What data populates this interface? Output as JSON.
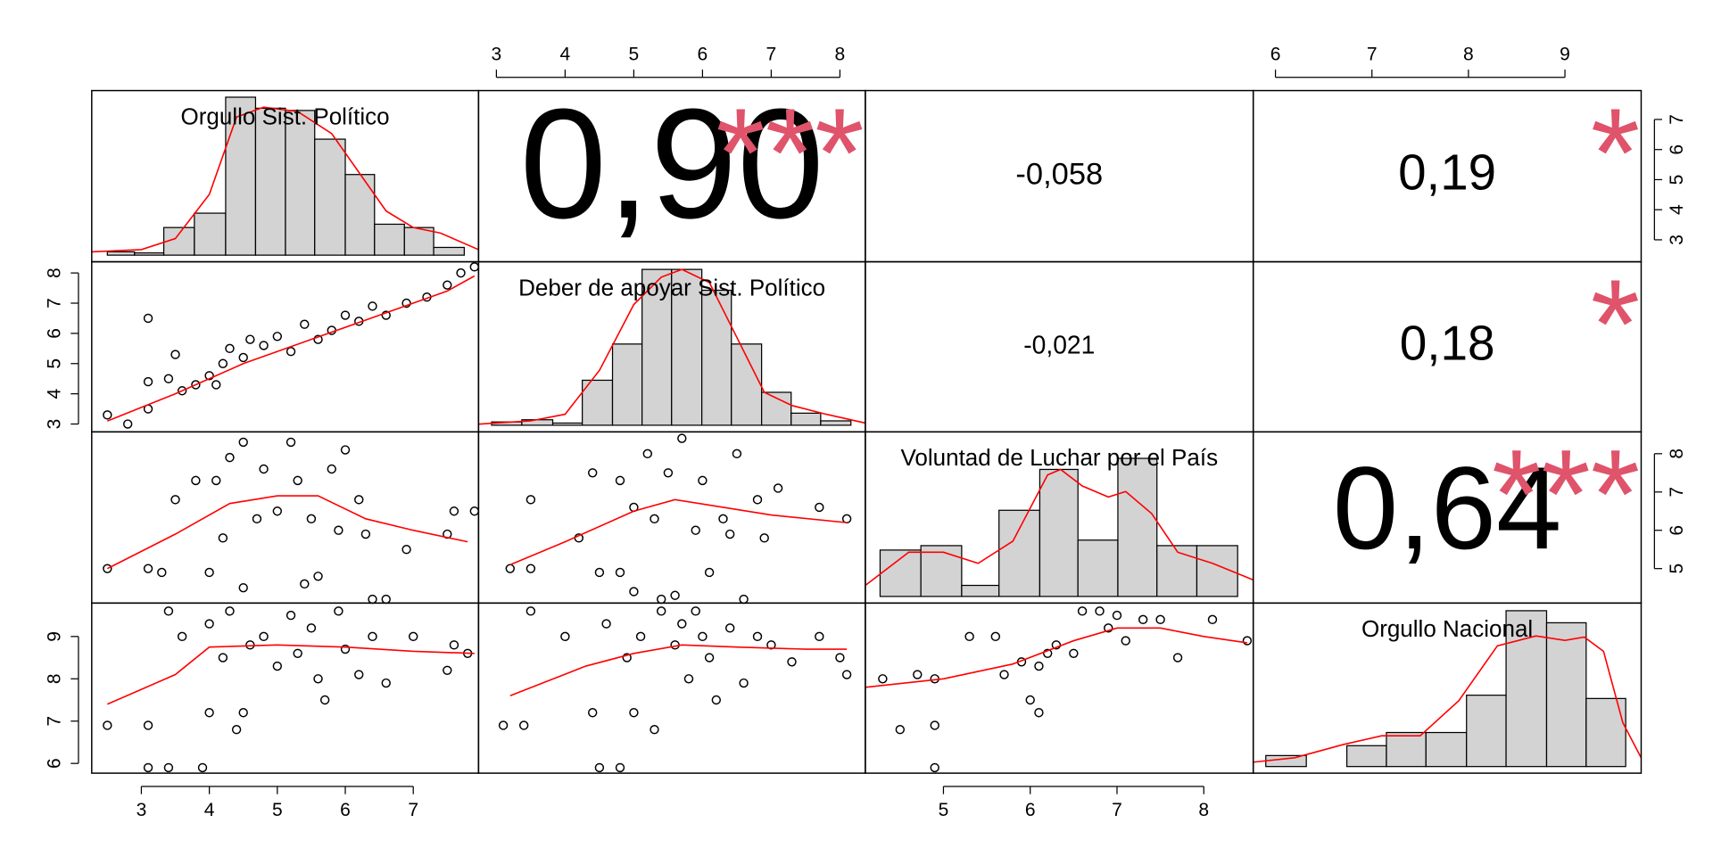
{
  "chart_data": {
    "type": "pairs",
    "point_color": "#000000",
    "fit_color": "#ff0000",
    "hist_color": "#d3d3d3",
    "star_color": "#df536b",
    "variables": [
      {
        "name": "Orgullo Sist. Político",
        "lim": [
          2.27,
          7.96
        ],
        "ticks": [
          3,
          4,
          5,
          6,
          7
        ],
        "hist": {
          "bins": [
            2.5,
            2.9,
            3.33,
            3.78,
            4.24,
            4.68,
            5.12,
            5.55,
            6.0,
            6.43,
            6.87,
            7.3,
            7.75
          ],
          "counts": [
            3,
            2,
            25,
            38,
            143,
            133,
            131,
            105,
            73,
            28,
            25,
            7
          ]
        },
        "density": {
          "x": [
            2.27,
            3.0,
            3.5,
            4.0,
            4.4,
            4.8,
            5.3,
            5.8,
            6.2,
            6.6,
            7.0,
            7.4,
            7.96
          ],
          "y": [
            3,
            5,
            15,
            55,
            125,
            134,
            130,
            110,
            75,
            40,
            25,
            20,
            5
          ]
        }
      },
      {
        "name": "Deber de apoyar Sist. Político",
        "lim": [
          2.74,
          8.37
        ],
        "ticks": [
          3,
          4,
          5,
          6,
          7,
          8
        ],
        "hist": {
          "bins": [
            2.93,
            3.37,
            3.82,
            4.25,
            4.69,
            5.12,
            5.55,
            5.99,
            6.42,
            6.86,
            7.29,
            7.72,
            8.16
          ],
          "counts": [
            3,
            5,
            2,
            41,
            74,
            142,
            142,
            123,
            74,
            30,
            11,
            4
          ]
        },
        "density": {
          "x": [
            2.74,
            3.5,
            4.0,
            4.5,
            5.0,
            5.4,
            5.7,
            6.1,
            6.5,
            6.9,
            7.3,
            7.8,
            8.37
          ],
          "y": [
            1,
            4,
            10,
            50,
            110,
            135,
            142,
            130,
            80,
            30,
            18,
            10,
            2
          ]
        }
      },
      {
        "name": "Voluntad de Luchar por el País",
        "lim": [
          4.1,
          8.57
        ],
        "ticks": [
          5,
          6,
          7,
          8
        ],
        "hist": {
          "bins": [
            4.27,
            4.74,
            5.21,
            5.64,
            6.11,
            6.55,
            7.01,
            7.46,
            7.92,
            8.39
          ],
          "counts": [
            42,
            46,
            10,
            78,
            115,
            51,
            125,
            46,
            46
          ]
        },
        "density": {
          "x": [
            4.1,
            4.6,
            5.0,
            5.4,
            5.8,
            6.2,
            6.35,
            6.6,
            6.9,
            7.1,
            7.4,
            7.7,
            8.1,
            8.57
          ],
          "y": [
            10,
            40,
            40,
            30,
            50,
            110,
            115,
            100,
            90,
            95,
            75,
            40,
            30,
            15
          ]
        }
      },
      {
        "name": "Orgullo Nacional",
        "lim": [
          5.77,
          9.79
        ],
        "ticks": [
          6,
          7,
          8,
          9
        ],
        "hist": {
          "bins": [
            5.9,
            6.32,
            6.74,
            7.15,
            7.56,
            7.98,
            8.39,
            8.81,
            9.22,
            9.63
          ],
          "counts": [
            10,
            0,
            19,
            31,
            31,
            65,
            142,
            131,
            62
          ]
        },
        "density": {
          "x": [
            5.77,
            6.2,
            6.7,
            7.1,
            7.5,
            7.9,
            8.3,
            8.7,
            9.0,
            9.2,
            9.4,
            9.6,
            9.79
          ],
          "y": [
            4,
            8,
            20,
            28,
            28,
            60,
            110,
            119,
            115,
            118,
            105,
            40,
            8
          ]
        }
      }
    ],
    "correlations": [
      {
        "pair": [
          0,
          1
        ],
        "value": 0.9,
        "label": "0,90",
        "stars": "***"
      },
      {
        "pair": [
          0,
          2
        ],
        "value": -0.058,
        "label": "-0,058"
      },
      {
        "pair": [
          0,
          3
        ],
        "value": 0.19,
        "label": "0,19",
        "stars": "*"
      },
      {
        "pair": [
          1,
          2
        ],
        "value": -0.021,
        "label": "-0,021"
      },
      {
        "pair": [
          1,
          3
        ],
        "value": 0.18,
        "label": "0,18",
        "stars": "*"
      },
      {
        "pair": [
          2,
          3
        ],
        "value": 0.64,
        "label": "0,64",
        "stars": "***"
      }
    ],
    "scatter": [
      {
        "pair": [
          0,
          1
        ],
        "x": [
          2.5,
          2.8,
          3.1,
          3.1,
          3.1,
          3.4,
          3.5,
          3.6,
          3.8,
          4.0,
          4.1,
          4.2,
          4.3,
          4.5,
          4.6,
          4.8,
          5.0,
          5.2,
          5.4,
          5.6,
          5.8,
          6.0,
          6.2,
          6.4,
          6.6,
          6.9,
          7.2,
          7.5,
          7.7,
          7.9
        ],
        "y": [
          3.3,
          3.0,
          3.5,
          4.4,
          6.5,
          4.5,
          5.3,
          4.1,
          4.3,
          4.6,
          4.3,
          5.0,
          5.5,
          5.2,
          5.8,
          5.6,
          5.9,
          5.4,
          6.3,
          5.8,
          6.1,
          6.6,
          6.4,
          6.9,
          6.6,
          7.0,
          7.2,
          7.6,
          8.0,
          8.2
        ],
        "fit_x": [
          2.5,
          3.5,
          4.5,
          5.5,
          6.5,
          7.5,
          7.9
        ],
        "fit_y": [
          3.1,
          4.0,
          5.0,
          5.8,
          6.6,
          7.4,
          7.9
        ]
      },
      {
        "pair": [
          0,
          2
        ],
        "x": [
          2.5,
          3.1,
          3.3,
          3.5,
          3.8,
          4.0,
          4.1,
          4.2,
          4.3,
          4.5,
          4.5,
          4.7,
          4.8,
          5.0,
          5.2,
          5.3,
          5.5,
          5.6,
          5.8,
          5.9,
          6.0,
          6.2,
          6.3,
          6.4,
          6.6,
          6.9,
          7.5,
          7.6,
          7.9,
          5.4
        ],
        "y": [
          5.0,
          5.0,
          4.9,
          6.8,
          7.3,
          4.9,
          7.3,
          5.8,
          7.9,
          4.5,
          8.3,
          6.3,
          7.6,
          6.5,
          8.3,
          7.3,
          6.3,
          4.8,
          7.6,
          6.0,
          8.1,
          6.8,
          5.9,
          4.2,
          4.2,
          5.5,
          5.9,
          6.5,
          6.5,
          4.6
        ],
        "fit_x": [
          2.5,
          3.5,
          4.3,
          5.0,
          5.6,
          6.3,
          7.0,
          7.8
        ],
        "fit_y": [
          5.0,
          5.9,
          6.7,
          6.9,
          6.9,
          6.3,
          6.0,
          5.7
        ]
      },
      {
        "pair": [
          1,
          2
        ],
        "x": [
          3.2,
          3.5,
          3.5,
          4.2,
          4.4,
          4.5,
          4.8,
          4.8,
          5.0,
          5.0,
          5.2,
          5.3,
          5.5,
          5.6,
          5.7,
          5.9,
          6.0,
          6.1,
          6.3,
          6.5,
          6.6,
          6.8,
          6.9,
          7.1,
          7.7,
          8.1,
          5.4,
          6.4
        ],
        "y": [
          5.0,
          5.0,
          6.8,
          5.8,
          7.5,
          4.9,
          4.9,
          7.3,
          6.6,
          4.4,
          8.0,
          6.3,
          7.5,
          4.3,
          8.4,
          6.0,
          7.3,
          4.9,
          6.3,
          8.0,
          4.2,
          6.8,
          5.8,
          7.1,
          6.6,
          6.3,
          4.2,
          5.9
        ],
        "fit_x": [
          3.2,
          4.0,
          5.0,
          5.6,
          6.3,
          7.0,
          8.1
        ],
        "fit_y": [
          5.1,
          5.7,
          6.5,
          6.8,
          6.6,
          6.4,
          6.2
        ]
      },
      {
        "pair": [
          0,
          3
        ],
        "x": [
          2.5,
          3.1,
          3.1,
          3.4,
          3.4,
          3.6,
          3.9,
          4.0,
          4.0,
          4.2,
          4.3,
          4.4,
          4.5,
          4.6,
          4.8,
          5.0,
          5.2,
          5.3,
          5.5,
          5.6,
          5.7,
          5.9,
          6.0,
          6.2,
          6.4,
          6.6,
          7.0,
          7.5,
          7.6,
          7.8
        ],
        "y": [
          6.9,
          6.9,
          5.9,
          5.9,
          9.6,
          9.0,
          5.9,
          9.3,
          7.2,
          8.5,
          9.6,
          6.8,
          7.2,
          8.8,
          9.0,
          8.3,
          9.5,
          8.6,
          9.2,
          8.0,
          7.5,
          9.6,
          8.7,
          8.1,
          9.0,
          7.9,
          9.0,
          8.2,
          8.8,
          8.6
        ],
        "fit_x": [
          2.5,
          3.5,
          4.0,
          5.0,
          6.0,
          7.0,
          7.9
        ],
        "fit_y": [
          7.4,
          8.1,
          8.75,
          8.8,
          8.75,
          8.65,
          8.6
        ]
      },
      {
        "pair": [
          1,
          3
        ],
        "x": [
          3.1,
          3.4,
          3.5,
          4.0,
          4.4,
          4.5,
          4.6,
          4.8,
          4.9,
          5.0,
          5.1,
          5.3,
          5.4,
          5.6,
          5.7,
          5.8,
          6.0,
          6.1,
          6.2,
          6.4,
          6.6,
          6.8,
          7.0,
          7.3,
          7.7,
          8.0,
          8.1,
          5.9
        ],
        "y": [
          6.9,
          6.9,
          9.6,
          9.0,
          7.2,
          5.9,
          9.3,
          5.9,
          8.5,
          7.2,
          9.0,
          6.8,
          9.6,
          8.8,
          9.3,
          8.0,
          9.0,
          8.5,
          7.5,
          9.2,
          7.9,
          9.0,
          8.8,
          8.4,
          9.0,
          8.5,
          8.1,
          9.6
        ],
        "fit_x": [
          3.2,
          4.3,
          5.0,
          5.7,
          6.5,
          7.5,
          8.1
        ],
        "fit_y": [
          7.6,
          8.3,
          8.6,
          8.8,
          8.75,
          8.7,
          8.7
        ]
      },
      {
        "pair": [
          2,
          3
        ],
        "x": [
          4.3,
          4.5,
          4.7,
          4.9,
          4.9,
          4.9,
          5.3,
          5.6,
          5.7,
          5.9,
          6.0,
          6.1,
          6.1,
          6.2,
          6.3,
          6.5,
          6.6,
          6.8,
          6.9,
          7.0,
          7.1,
          7.3,
          7.5,
          7.7,
          8.1,
          8.5
        ],
        "y": [
          8.0,
          6.8,
          8.1,
          5.9,
          8.0,
          6.9,
          9.0,
          9.0,
          8.1,
          8.4,
          7.5,
          7.2,
          8.3,
          8.6,
          8.8,
          8.6,
          9.6,
          9.6,
          9.2,
          9.5,
          8.9,
          9.4,
          9.4,
          8.5,
          9.4,
          8.9
        ],
        "fit_x": [
          4.1,
          5.0,
          5.8,
          6.5,
          7.0,
          7.5,
          8.0,
          8.5
        ],
        "fit_y": [
          7.8,
          8.0,
          8.35,
          8.9,
          9.2,
          9.2,
          9.0,
          8.85
        ]
      }
    ]
  }
}
